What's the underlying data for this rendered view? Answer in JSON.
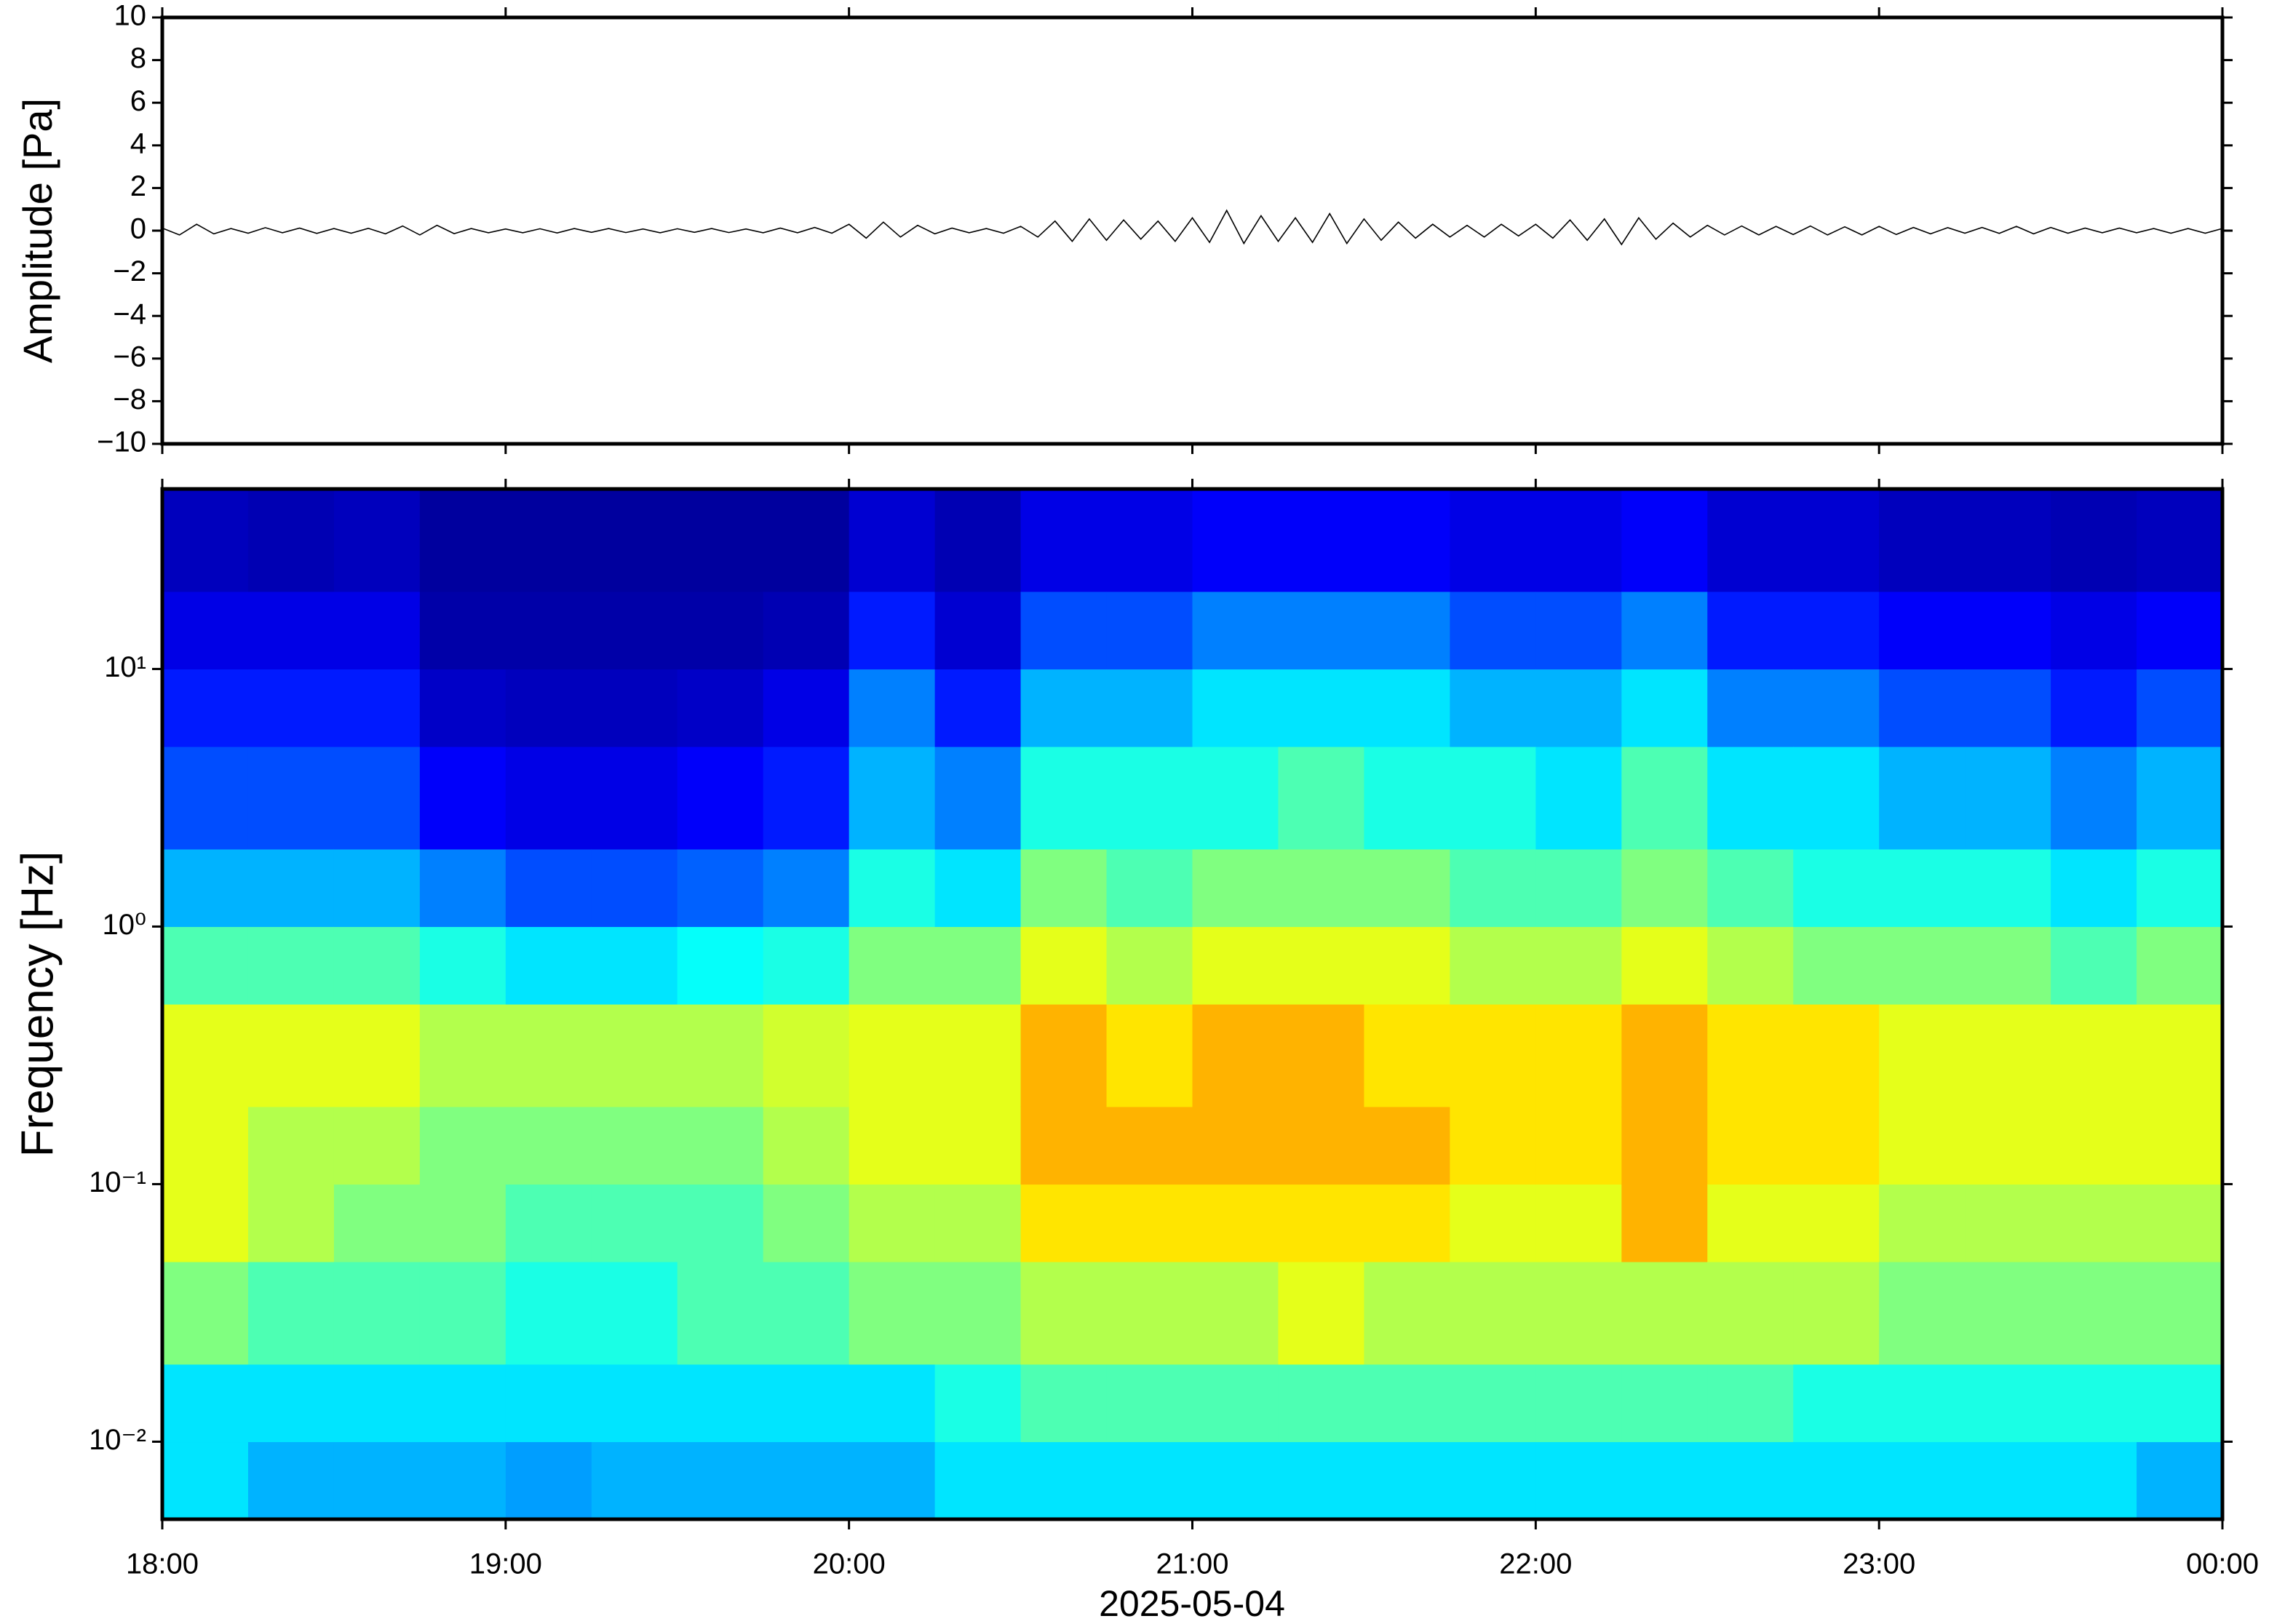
{
  "chart_data": [
    {
      "type": "line",
      "ylabel": "Amplitude [Pa]",
      "color": "#000000",
      "xlim": [
        18,
        24
      ],
      "ylim": [
        -10,
        10
      ],
      "yticks": [
        {
          "value": -10,
          "label": "−10"
        },
        {
          "value": -8,
          "label": "−8"
        },
        {
          "value": -6,
          "label": "−6"
        },
        {
          "value": -4,
          "label": "−4"
        },
        {
          "value": -2,
          "label": "−2"
        },
        0,
        2,
        4,
        6,
        8,
        10
      ],
      "x": [
        18,
        18.05,
        18.1,
        18.15,
        18.2,
        18.25,
        18.3,
        18.35,
        18.4,
        18.45,
        18.5,
        18.55,
        18.6,
        18.65,
        18.7,
        18.75,
        18.8,
        18.85,
        18.9,
        18.95,
        19,
        19.05,
        19.1,
        19.15,
        19.2,
        19.25,
        19.3,
        19.35,
        19.4,
        19.45,
        19.5,
        19.55,
        19.6,
        19.65,
        19.7,
        19.75,
        19.8,
        19.85,
        19.9,
        19.95,
        20,
        20.05,
        20.1,
        20.15,
        20.2,
        20.25,
        20.3,
        20.35,
        20.4,
        20.45,
        20.5,
        20.55,
        20.6,
        20.65,
        20.7,
        20.75,
        20.8,
        20.85,
        20.9,
        20.95,
        21,
        21.05,
        21.1,
        21.15,
        21.2,
        21.25,
        21.3,
        21.35,
        21.4,
        21.45,
        21.5,
        21.55,
        21.6,
        21.65,
        21.7,
        21.75,
        21.8,
        21.85,
        21.9,
        21.95,
        22,
        22.05,
        22.1,
        22.15,
        22.2,
        22.25,
        22.3,
        22.35,
        22.4,
        22.45,
        22.5,
        22.55,
        22.6,
        22.65,
        22.7,
        22.75,
        22.8,
        22.85,
        22.9,
        22.95,
        23,
        23.05,
        23.1,
        23.15,
        23.2,
        23.25,
        23.3,
        23.35,
        23.4,
        23.45,
        23.5,
        23.55,
        23.6,
        23.65,
        23.7,
        23.75,
        23.8,
        23.85,
        23.9,
        23.95,
        24
      ],
      "values": [
        0.12,
        -0.2,
        0.3,
        -0.15,
        0.1,
        -0.12,
        0.14,
        -0.1,
        0.12,
        -0.13,
        0.1,
        -0.12,
        0.11,
        -0.15,
        0.22,
        -0.2,
        0.25,
        -0.14,
        0.1,
        -0.1,
        0.08,
        -0.1,
        0.09,
        -0.11,
        0.1,
        -0.08,
        0.1,
        -0.09,
        0.08,
        -0.1,
        0.09,
        -0.08,
        0.1,
        -0.09,
        0.08,
        -0.1,
        0.12,
        -0.1,
        0.15,
        -0.12,
        0.3,
        -0.35,
        0.4,
        -0.3,
        0.25,
        -0.15,
        0.12,
        -0.1,
        0.1,
        -0.12,
        0.2,
        -0.3,
        0.45,
        -0.5,
        0.55,
        -0.45,
        0.5,
        -0.4,
        0.45,
        -0.5,
        0.6,
        -0.55,
        0.95,
        -0.6,
        0.7,
        -0.5,
        0.6,
        -0.55,
        0.8,
        -0.6,
        0.55,
        -0.45,
        0.4,
        -0.35,
        0.3,
        -0.3,
        0.25,
        -0.3,
        0.3,
        -0.25,
        0.3,
        -0.35,
        0.5,
        -0.45,
        0.55,
        -0.65,
        0.6,
        -0.4,
        0.35,
        -0.3,
        0.25,
        -0.2,
        0.22,
        -0.2,
        0.2,
        -0.18,
        0.22,
        -0.2,
        0.18,
        -0.2,
        0.2,
        -0.18,
        0.15,
        -0.15,
        0.14,
        -0.12,
        0.15,
        -0.13,
        0.2,
        -0.15,
        0.15,
        -0.12,
        0.12,
        -0.1,
        0.12,
        -0.1,
        0.1,
        -0.12,
        0.1,
        -0.12,
        0.1
      ]
    },
    {
      "type": "spectrogram",
      "ylabel": "Frequency [Hz]",
      "xlabel": "2025-05-04",
      "colormap": "jet",
      "ylog": true,
      "xlim": [
        18,
        24
      ],
      "ylim": [
        0.005,
        50
      ],
      "zlim": [
        0,
        10
      ],
      "xticks": [
        {
          "value": 18,
          "label": "18:00"
        },
        {
          "value": 19,
          "label": "19:00"
        },
        {
          "value": 20,
          "label": "20:00"
        },
        {
          "value": 21,
          "label": "21:00"
        },
        {
          "value": 22,
          "label": "22:00"
        },
        {
          "value": 23,
          "label": "23:00"
        },
        {
          "value": 24,
          "label": "00:00"
        }
      ],
      "yticks": [
        {
          "value": 0.01,
          "label": "10⁻²"
        },
        {
          "value": 0.1,
          "label": "10⁻¹"
        },
        {
          "value": 1,
          "label": "10⁰"
        },
        {
          "value": 10,
          "label": "10¹"
        }
      ],
      "xbins": [
        18,
        18.25,
        18.5,
        18.75,
        19,
        19.25,
        19.5,
        19.75,
        20,
        20.25,
        20.5,
        20.75,
        21,
        21.25,
        21.5,
        21.75,
        22,
        22.25,
        22.5,
        22.75,
        23,
        23.25,
        23.5,
        23.75,
        24
      ],
      "ybins": [
        0.005,
        0.01,
        0.02,
        0.05,
        0.1,
        0.2,
        0.5,
        1,
        2,
        5,
        10,
        20,
        50
      ],
      "values": [
        [
          3.5,
          3.5,
          5,
          6,
          6,
          6,
          4.5,
          3,
          2,
          1.5,
          1,
          0.6
        ],
        [
          3,
          3.5,
          4.5,
          5.5,
          5.5,
          6,
          4.5,
          3,
          2,
          1.5,
          1,
          0.5
        ],
        [
          3,
          3.5,
          4.5,
          5,
          5.5,
          6,
          4.5,
          3,
          2,
          1.5,
          1,
          0.6
        ],
        [
          3,
          3.5,
          4.5,
          5,
          5,
          5.5,
          4,
          2.5,
          1.2,
          0.7,
          0.4,
          0.3
        ],
        [
          2.8,
          3.5,
          4,
          4.5,
          5,
          5.5,
          3.5,
          2,
          1,
          0.6,
          0.4,
          0.3
        ],
        [
          3,
          3.5,
          4,
          4.5,
          5,
          5.5,
          3.5,
          2,
          1,
          0.6,
          0.4,
          0.3
        ],
        [
          3,
          3.5,
          4.5,
          4.5,
          5,
          5.5,
          3.8,
          2.2,
          1.2,
          0.7,
          0.4,
          0.3
        ],
        [
          3,
          3.5,
          4.5,
          5,
          5.5,
          5.8,
          4,
          2.5,
          1.5,
          1,
          0.5,
          0.3
        ],
        [
          3,
          3.5,
          5,
          5.5,
          6,
          6,
          5,
          4,
          3,
          2.5,
          1.5,
          0.8
        ],
        [
          3.5,
          4,
          5,
          5.5,
          6,
          6,
          5,
          3.5,
          2.5,
          1.5,
          0.8,
          0.5
        ],
        [
          3.5,
          4.5,
          5.5,
          6.5,
          7,
          7,
          6,
          5,
          4,
          3,
          2,
          1
        ],
        [
          3.5,
          4.5,
          5.5,
          6.5,
          7,
          6.5,
          5.5,
          4.5,
          4,
          3,
          2,
          1
        ],
        [
          3.5,
          4.5,
          5.5,
          6.5,
          7,
          7,
          6,
          5,
          4,
          3.5,
          2.5,
          1.2
        ],
        [
          3.5,
          4.5,
          6,
          6.5,
          7,
          7,
          6,
          5,
          4.5,
          3.5,
          2.5,
          1.2
        ],
        [
          3.5,
          4.5,
          5.5,
          6.5,
          7,
          6.5,
          6,
          5,
          4,
          3.5,
          2.5,
          1.2
        ],
        [
          3.5,
          4.5,
          5.5,
          6,
          6.5,
          6.5,
          5.5,
          4.5,
          4,
          3,
          2,
          1
        ],
        [
          3.5,
          4.5,
          5.5,
          6,
          6.5,
          6.5,
          5.5,
          4.5,
          3.5,
          3,
          2,
          1
        ],
        [
          3.5,
          4.5,
          5.5,
          7,
          7,
          7,
          6,
          5,
          4.5,
          3.5,
          2.5,
          1.2
        ],
        [
          3.5,
          4.5,
          5.5,
          6,
          6.5,
          6.5,
          5.5,
          4.5,
          3.5,
          2.5,
          1.5,
          0.8
        ],
        [
          3.5,
          4,
          5.5,
          6,
          6.5,
          6.5,
          5,
          4,
          3.5,
          2.5,
          1.5,
          0.8
        ],
        [
          3.5,
          4,
          5,
          5.5,
          6,
          6,
          5,
          4,
          3,
          2,
          1.2,
          0.6
        ],
        [
          3.5,
          4,
          5,
          5.5,
          6,
          6,
          5,
          4,
          3,
          2,
          1.2,
          0.6
        ],
        [
          3.5,
          4,
          5,
          5.5,
          6,
          6,
          4.5,
          3.5,
          2.5,
          1.5,
          1,
          0.5
        ],
        [
          3,
          4,
          5,
          5.5,
          6,
          6,
          5,
          4,
          3,
          2,
          1.2,
          0.6
        ]
      ]
    }
  ]
}
